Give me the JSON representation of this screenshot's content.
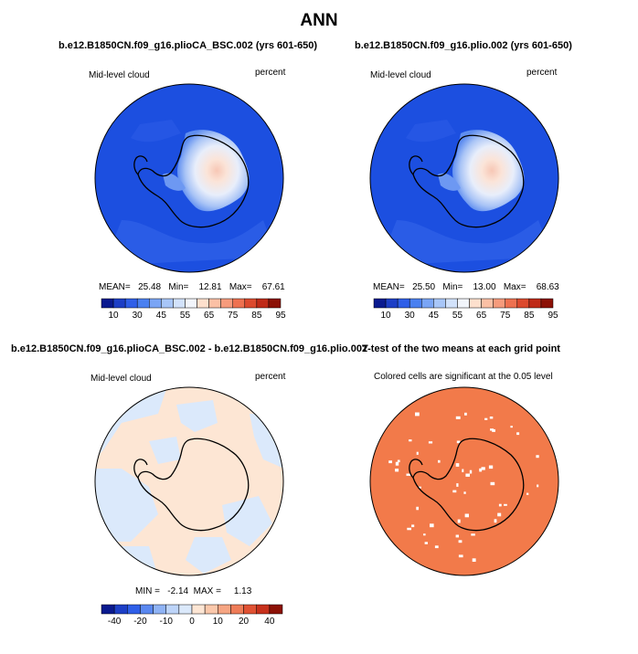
{
  "title": "ANN",
  "panels": {
    "p1": {
      "title": "b.e12.B1850CN.f09_g16.plioCA_BSC.002 (yrs 601-650)",
      "left_label": "Mid-level cloud",
      "right_label": "percent",
      "stats": "MEAN=   25.48   Min=    12.81   Max=    67.61"
    },
    "p2": {
      "title": "b.e12.B1850CN.f09_g16.plio.002 (yrs 601-650)",
      "left_label": "Mid-level cloud",
      "right_label": "percent",
      "stats": "MEAN=   25.50   Min=    13.00   Max=    68.63"
    },
    "p3": {
      "title": "b.e12.B1850CN.f09_g16.plioCA_BSC.002 - b.e12.B1850CN.f09_g16.plio.002",
      "left_label": "Mid-level cloud",
      "right_label": "percent",
      "stats": "MIN =   -2.14  MAX =     1.13"
    },
    "p4": {
      "title": "T-test of the two means at each grid point",
      "subtitle": "Colored cells are significant at the 0.05 level"
    }
  },
  "colorbars": {
    "abs_labels": [
      "10",
      "30",
      "45",
      "55",
      "65",
      "75",
      "85",
      "95"
    ],
    "abs_colors": [
      "#0a1a8f",
      "#1d3fc6",
      "#2f5fe8",
      "#4a80f0",
      "#7aa5f5",
      "#a8c6f8",
      "#d2e2fb",
      "#f2f5fb",
      "#fde0cd",
      "#fbc0a5",
      "#f69b7c",
      "#ee7150",
      "#dc4a2e",
      "#bf2a18",
      "#8c1106"
    ],
    "diff_labels": [
      "-40",
      "-20",
      "-10",
      "0",
      "10",
      "20",
      "40"
    ],
    "diff_colors": [
      "#0a1a8f",
      "#1d3fc6",
      "#2f5fe8",
      "#5a88f0",
      "#8fb3f5",
      "#bdd4f9",
      "#dbe9fb",
      "#fde6d4",
      "#fbc8ab",
      "#f6a583",
      "#ee7c58",
      "#e05233",
      "#c7311c",
      "#8c1106"
    ]
  },
  "colors": {
    "map_deep_blue": "#1a50e0",
    "map_mid_blue": "#2f63e8",
    "diff_pos": "#fde6d4",
    "diff_neg": "#dbe9fb",
    "ttest_orange": "#f27a4a"
  }
}
